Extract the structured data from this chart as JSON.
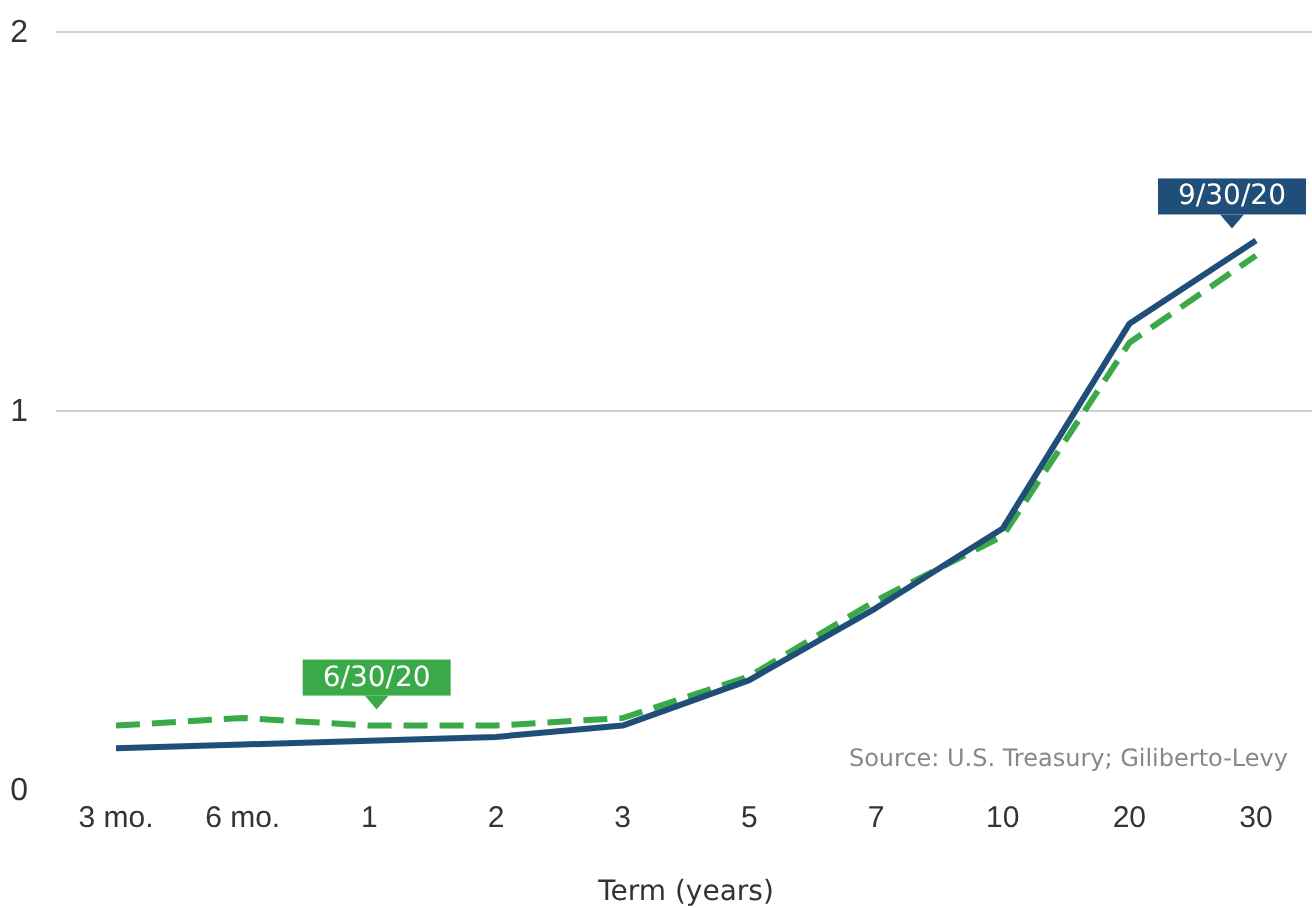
{
  "chart_data": {
    "type": "line",
    "xlabel": "Term (years)",
    "categories": [
      "3 mo.",
      "6 mo.",
      "1",
      "2",
      "3",
      "5",
      "7",
      "10",
      "20",
      "30"
    ],
    "series": [
      {
        "name": "9/30/20",
        "color": "#1f4e79",
        "line_style": "solid",
        "values": [
          0.11,
          0.12,
          0.13,
          0.14,
          0.17,
          0.29,
          0.48,
          0.69,
          1.23,
          1.45
        ]
      },
      {
        "name": "6/30/20",
        "color": "#3aaa48",
        "line_style": "dashed",
        "values": [
          0.17,
          0.19,
          0.17,
          0.17,
          0.19,
          0.3,
          0.5,
          0.67,
          1.18,
          1.41
        ]
      }
    ],
    "ylim": [
      0,
      2
    ],
    "yticks": [
      0,
      1,
      2
    ],
    "grid": "y",
    "marker": "none",
    "annotations": [
      "Source: U.S. Treasury; Giliberto-Levy"
    ]
  }
}
